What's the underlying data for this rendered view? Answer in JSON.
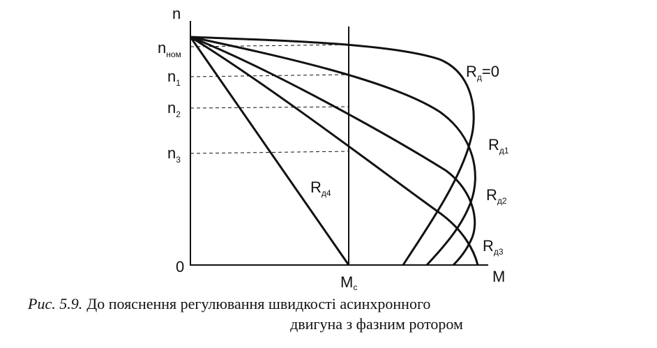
{
  "axes": {
    "y_label": "n",
    "x_label": "M",
    "origin": "0"
  },
  "levels": [
    {
      "main": "n",
      "sub": "ном"
    },
    {
      "main": "n",
      "sub": "1"
    },
    {
      "main": "n",
      "sub": "2"
    },
    {
      "main": "n",
      "sub": "3"
    }
  ],
  "torque_label": {
    "main": "M",
    "sub": "c"
  },
  "curves": [
    {
      "main": "R",
      "sub": "д",
      "suffix": "=0"
    },
    {
      "main": "R",
      "sub": "д1"
    },
    {
      "main": "R",
      "sub": "д2"
    },
    {
      "main": "R",
      "sub": "д3"
    },
    {
      "main": "R",
      "sub": "д4"
    }
  ],
  "caption": {
    "number": "Рис. 5.9.",
    "lines": [
      "До пояснення регулювання швидкості асинхронного",
      "двигуна з фазним ротором"
    ]
  }
}
